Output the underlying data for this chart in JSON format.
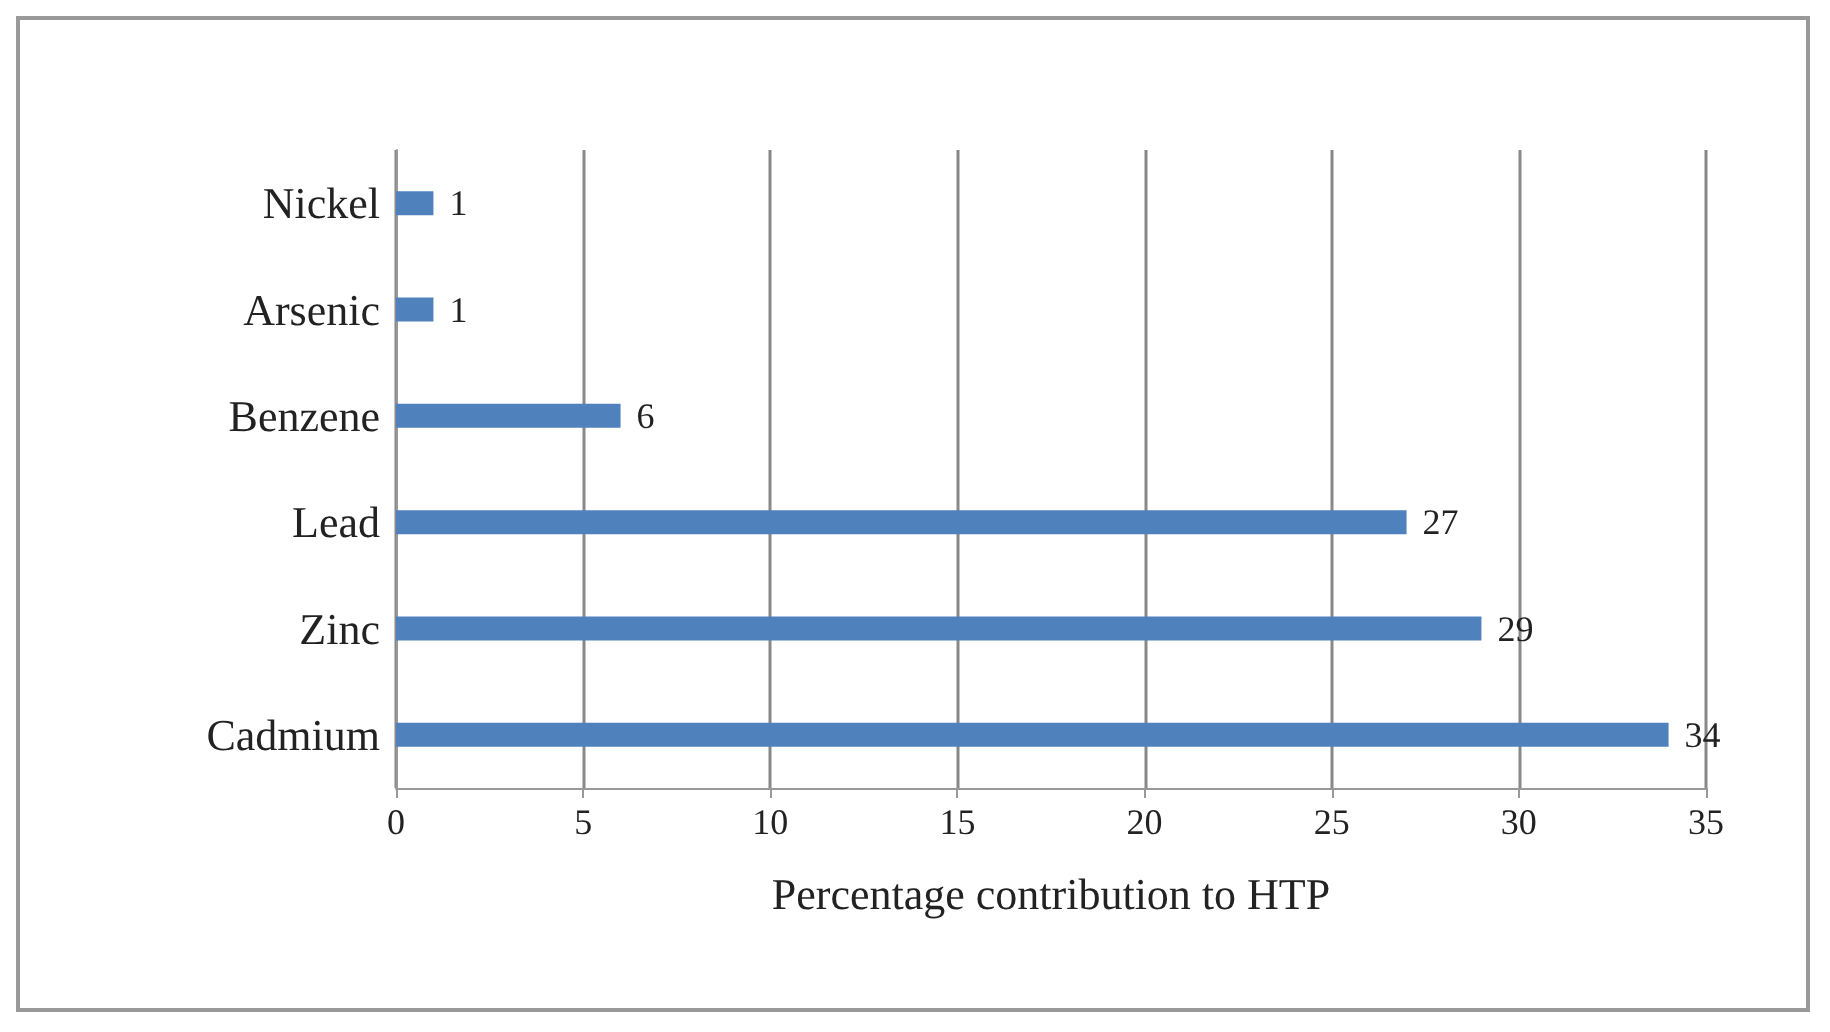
{
  "chart_data": {
    "type": "bar",
    "orientation": "horizontal",
    "xlabel": "Percentage contribution to HTP",
    "categories": [
      "Nickel",
      "Arsenic",
      "Benzene",
      "Lead",
      "Zinc",
      "Cadmium"
    ],
    "values": [
      1,
      1,
      6,
      27,
      29,
      34
    ],
    "color": "#4f81bd",
    "xlim": [
      0,
      35
    ],
    "xticks": [
      0,
      5,
      10,
      15,
      20,
      25,
      30,
      35
    ],
    "grid": "x",
    "data_labels": true
  }
}
